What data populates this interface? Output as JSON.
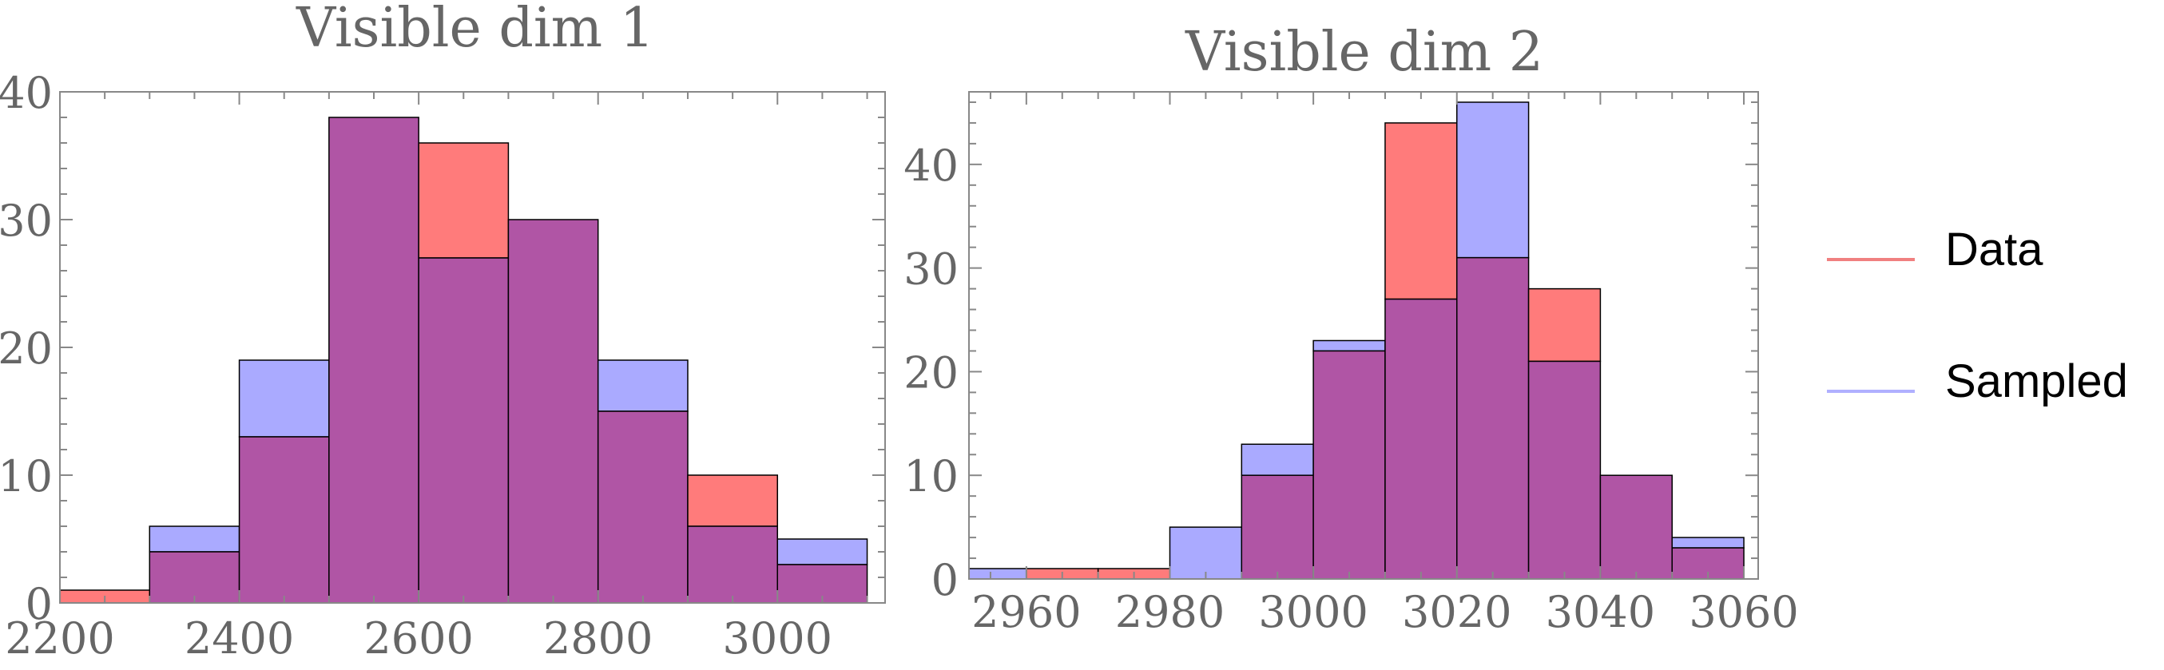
{
  "chart_data": [
    {
      "type": "bar",
      "title": "Visible dim 1",
      "xlabel": "",
      "ylabel": "",
      "bin_edges": [
        2200,
        2300,
        2400,
        2500,
        2600,
        2700,
        2800,
        2900,
        3000,
        3100
      ],
      "xlim": [
        2200,
        3120
      ],
      "ylim": [
        0,
        40
      ],
      "x_ticks": [
        2200,
        2400,
        2600,
        2800,
        3000
      ],
      "y_ticks": [
        0,
        10,
        20,
        30,
        40
      ],
      "series": [
        {
          "name": "Data",
          "values": [
            1,
            4,
            13,
            38,
            36,
            30,
            15,
            10,
            3
          ]
        },
        {
          "name": "Sampled",
          "values": [
            0,
            6,
            19,
            38,
            27,
            30,
            19,
            6,
            5
          ]
        }
      ]
    },
    {
      "type": "bar",
      "title": "Visible dim 2",
      "xlabel": "",
      "ylabel": "",
      "bin_edges": [
        2950,
        2960,
        2970,
        2980,
        2990,
        3000,
        3010,
        3020,
        3030,
        3040,
        3050,
        3060
      ],
      "xlim": [
        2952,
        3062
      ],
      "ylim": [
        0,
        47
      ],
      "x_ticks": [
        2960,
        2980,
        3000,
        3020,
        3040,
        3060
      ],
      "y_ticks": [
        0,
        10,
        20,
        30,
        40
      ],
      "series": [
        {
          "name": "Data",
          "values": [
            0,
            1,
            1,
            0,
            10,
            22,
            44,
            31,
            28,
            10,
            3
          ]
        },
        {
          "name": "Sampled",
          "values": [
            1,
            0,
            0,
            5,
            13,
            23,
            27,
            46,
            21,
            10,
            4
          ]
        }
      ]
    }
  ],
  "legend": {
    "placement": "right",
    "items": [
      {
        "label": "Data",
        "color": "#f08080"
      },
      {
        "label": "Sampled",
        "color": "#b0b0ff"
      }
    ]
  },
  "colors": {
    "data_fill": "#ff7b7b",
    "sampled_fill": "#aaaaff",
    "overlap_fill": "#b055a5"
  }
}
